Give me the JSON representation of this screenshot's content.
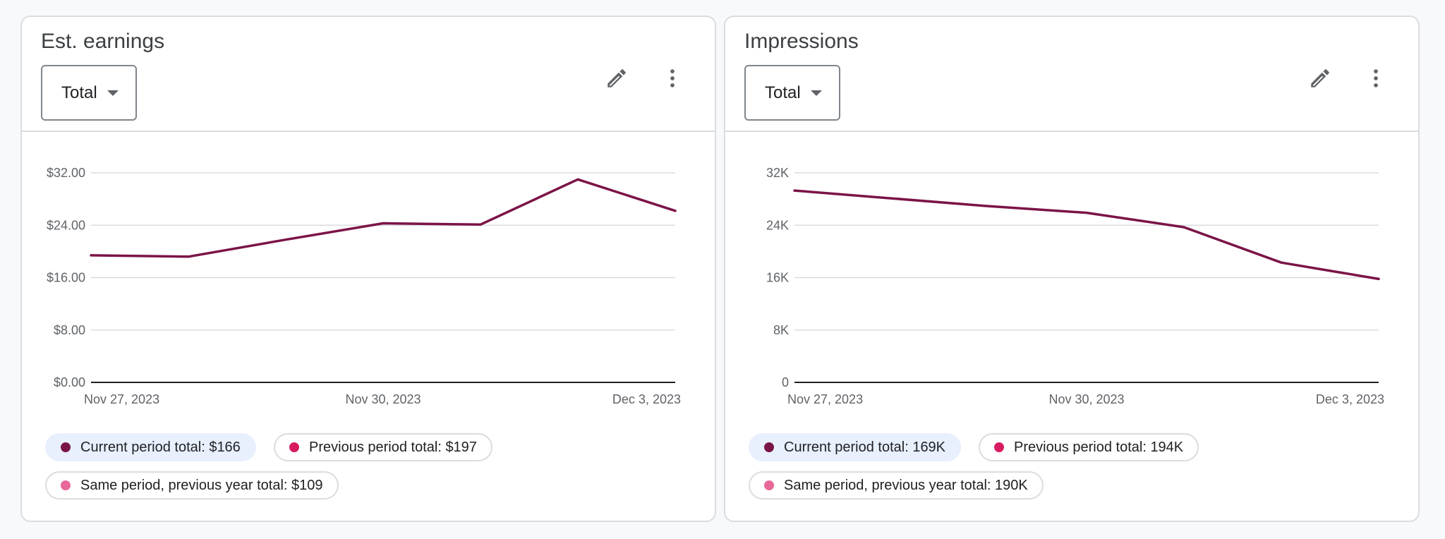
{
  "colors": {
    "current": "#7b1446",
    "previous": "#d81b60",
    "same_period_last_year": "#e8689a",
    "gridline": "#dadce0",
    "axis": "#202124",
    "tick_text": "#5f6368"
  },
  "cards": [
    {
      "title": "Est. earnings",
      "dropdown_value": "Total",
      "icons": {
        "edit": "pencil-icon",
        "more": "more-vert-icon"
      },
      "legend": [
        {
          "label": "Current period total: $166",
          "active": true,
          "color_key": "current"
        },
        {
          "label": "Previous period total: $197",
          "active": false,
          "color_key": "previous"
        },
        {
          "label": "Same period, previous year total: $109",
          "active": false,
          "color_key": "same_period_last_year"
        }
      ]
    },
    {
      "title": "Impressions",
      "dropdown_value": "Total",
      "icons": {
        "edit": "pencil-icon",
        "more": "more-vert-icon"
      },
      "legend": [
        {
          "label": "Current period total: 169K",
          "active": true,
          "color_key": "current"
        },
        {
          "label": "Previous period total: 194K",
          "active": false,
          "color_key": "previous"
        },
        {
          "label": "Same period, previous year total: 190K",
          "active": false,
          "color_key": "same_period_last_year"
        }
      ]
    }
  ],
  "chart_data": [
    {
      "type": "line",
      "title": "Est. earnings",
      "x": [
        "Nov 27, 2023",
        "Nov 28, 2023",
        "Nov 29, 2023",
        "Nov 30, 2023",
        "Dec 1, 2023",
        "Dec 2, 2023",
        "Dec 3, 2023"
      ],
      "x_tick_labels": [
        "Nov 27, 2023",
        "Nov 30, 2023",
        "Dec 3, 2023"
      ],
      "y_tick_labels": [
        "$0.00",
        "$8.00",
        "$16.00",
        "$24.00",
        "$32.00"
      ],
      "ylim": [
        0,
        32
      ],
      "grid": true,
      "series": [
        {
          "values": [
            19.4,
            19.2,
            21.8,
            24.3,
            24.1,
            31.0,
            26.2
          ]
        }
      ]
    },
    {
      "type": "line",
      "title": "Impressions",
      "x": [
        "Nov 27, 2023",
        "Nov 28, 2023",
        "Nov 29, 2023",
        "Nov 30, 2023",
        "Dec 1, 2023",
        "Dec 2, 2023",
        "Dec 3, 2023"
      ],
      "x_tick_labels": [
        "Nov 27, 2023",
        "Nov 30, 2023",
        "Dec 3, 2023"
      ],
      "y_tick_labels": [
        "0",
        "8K",
        "16K",
        "24K",
        "32K"
      ],
      "ylim": [
        0,
        32000
      ],
      "grid": true,
      "series": [
        {
          "values": [
            29300,
            28100,
            26900,
            25900,
            23700,
            18300,
            15800
          ]
        }
      ]
    }
  ]
}
